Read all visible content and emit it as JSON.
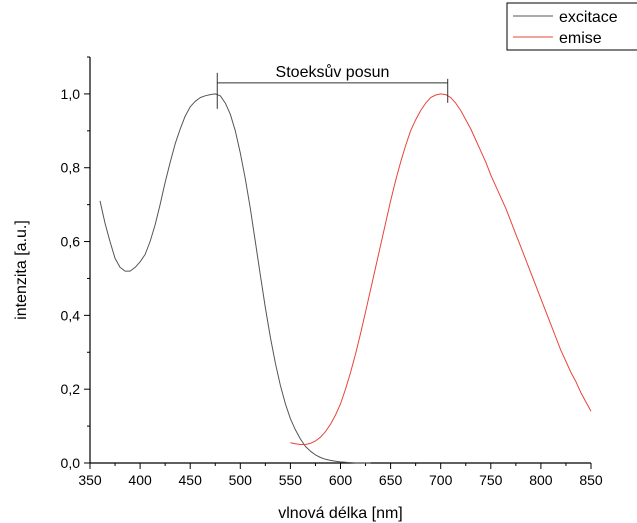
{
  "chart_data": {
    "type": "line",
    "title": "",
    "xlabel": "vlnová délka [nm]",
    "ylabel": "intenzita [a.u.]",
    "xlim": [
      350,
      850
    ],
    "ylim": [
      0,
      1.1
    ],
    "x_ticks": [
      350,
      400,
      450,
      500,
      550,
      600,
      650,
      700,
      750,
      800,
      850
    ],
    "x_tick_labels": [
      "350",
      "400",
      "450",
      "500",
      "550",
      "600",
      "650",
      "700",
      "750",
      "800",
      "850"
    ],
    "y_ticks": [
      0,
      0.2,
      0.4,
      0.6,
      0.8,
      1.0
    ],
    "y_tick_labels": [
      "0,0",
      "0,2",
      "0,4",
      "0,6",
      "0,8",
      "1,0"
    ],
    "grid": false,
    "legend_position": "top-right",
    "series": [
      {
        "name": "excitace",
        "color": "#555555",
        "x": [
          360,
          365,
          370,
          375,
          380,
          385,
          390,
          395,
          400,
          405,
          410,
          415,
          420,
          425,
          430,
          435,
          440,
          445,
          450,
          455,
          460,
          465,
          470,
          475,
          480,
          485,
          490,
          495,
          500,
          505,
          510,
          515,
          520,
          525,
          530,
          535,
          540,
          545,
          550,
          555,
          560,
          565,
          570,
          575,
          580,
          585,
          590,
          595,
          600,
          605,
          610,
          615,
          620,
          625,
          630
        ],
        "y": [
          0.71,
          0.65,
          0.6,
          0.555,
          0.53,
          0.52,
          0.52,
          0.53,
          0.545,
          0.565,
          0.6,
          0.645,
          0.7,
          0.76,
          0.815,
          0.865,
          0.905,
          0.94,
          0.965,
          0.98,
          0.99,
          0.995,
          0.998,
          1.0,
          0.995,
          0.975,
          0.945,
          0.9,
          0.84,
          0.77,
          0.69,
          0.6,
          0.51,
          0.42,
          0.34,
          0.27,
          0.21,
          0.16,
          0.12,
          0.09,
          0.065,
          0.045,
          0.032,
          0.022,
          0.015,
          0.01,
          0.007,
          0.005,
          0.003,
          0.002,
          0.001,
          0.0,
          0.0,
          0.0,
          0.0
        ]
      },
      {
        "name": "emise",
        "color": "#e8443a",
        "x": [
          550,
          555,
          560,
          565,
          570,
          575,
          580,
          585,
          590,
          595,
          600,
          605,
          610,
          615,
          620,
          625,
          630,
          635,
          640,
          645,
          650,
          655,
          660,
          665,
          670,
          675,
          680,
          685,
          690,
          695,
          700,
          705,
          710,
          715,
          720,
          725,
          730,
          735,
          740,
          745,
          750,
          755,
          760,
          765,
          770,
          775,
          780,
          785,
          790,
          795,
          800,
          805,
          810,
          815,
          820,
          825,
          830,
          835,
          840,
          845,
          850
        ],
        "y": [
          0.055,
          0.052,
          0.05,
          0.05,
          0.053,
          0.06,
          0.07,
          0.085,
          0.105,
          0.13,
          0.16,
          0.2,
          0.245,
          0.295,
          0.35,
          0.41,
          0.47,
          0.53,
          0.59,
          0.65,
          0.71,
          0.765,
          0.815,
          0.86,
          0.9,
          0.93,
          0.955,
          0.975,
          0.99,
          0.997,
          1.0,
          0.998,
          0.99,
          0.975,
          0.955,
          0.93,
          0.905,
          0.875,
          0.845,
          0.815,
          0.78,
          0.75,
          0.72,
          0.69,
          0.655,
          0.62,
          0.585,
          0.55,
          0.515,
          0.48,
          0.445,
          0.41,
          0.375,
          0.34,
          0.305,
          0.275,
          0.245,
          0.22,
          0.19,
          0.165,
          0.14
        ]
      }
    ],
    "annotations": [
      {
        "text": "Stoeksův posun",
        "x_start": 477,
        "x_end": 707,
        "y": 1.03
      }
    ]
  }
}
